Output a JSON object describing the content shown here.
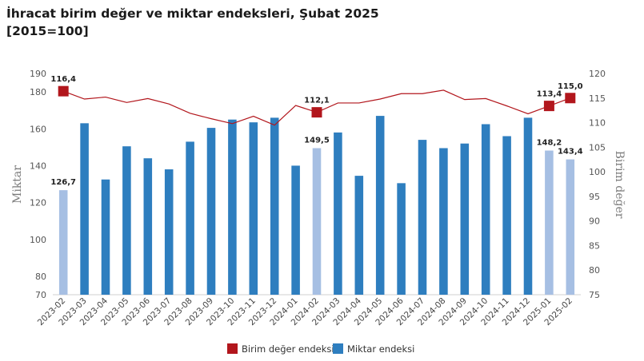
{
  "title": {
    "line1": "İhracat birim değer ve miktar endeksleri, Şubat 2025",
    "line2": "[2015=100]"
  },
  "chart_data": {
    "type": "bar",
    "categories": [
      "2023-02",
      "2023-03",
      "2023-04",
      "2023-05",
      "2023-06",
      "2023-07",
      "2023-08",
      "2023-09",
      "2023-10",
      "2023-11",
      "2023-12",
      "2024-01",
      "2024-02",
      "2024-03",
      "2024-04",
      "2024-05",
      "2024-06",
      "2024-07",
      "2024-08",
      "2024-09",
      "2024-10",
      "2024-11",
      "2024-12",
      "2025-01",
      "2025-02"
    ],
    "ylabel_left": "Miktar",
    "ylabel_right": "Birim değer",
    "ylim_left": [
      70,
      190
    ],
    "ylim_right": [
      75,
      120
    ],
    "yticks_left": [
      70,
      80,
      100,
      120,
      140,
      160,
      180,
      190
    ],
    "yticks_right": [
      75,
      80,
      85,
      90,
      95,
      100,
      105,
      110,
      115,
      120
    ],
    "legend_position": "bottom",
    "series": [
      {
        "name": "Miktar endeksi",
        "type": "bar",
        "axis": "left",
        "color": "#2e7ebf",
        "highlight_color": "#a6bfe3",
        "values": [
          126.7,
          163.0,
          132.5,
          150.5,
          144.0,
          138.0,
          153.0,
          160.5,
          165.0,
          163.5,
          166.0,
          140.0,
          149.5,
          158.0,
          134.5,
          167.0,
          130.5,
          154.0,
          149.5,
          152.0,
          162.5,
          156.0,
          166.0,
          148.2,
          143.4
        ],
        "highlighted": [
          true,
          false,
          false,
          false,
          false,
          false,
          false,
          false,
          false,
          false,
          false,
          false,
          true,
          false,
          false,
          false,
          false,
          false,
          false,
          false,
          false,
          false,
          false,
          true,
          true
        ],
        "labels": {
          "0": "126,7",
          "12": "149,5",
          "23": "148,2",
          "24": "143,4"
        }
      },
      {
        "name": "Birim değer endeksi",
        "type": "line",
        "axis": "right",
        "color": "#b2161c",
        "values": [
          116.4,
          114.8,
          115.2,
          114.1,
          114.9,
          113.8,
          111.9,
          110.8,
          109.8,
          111.3,
          109.5,
          113.5,
          112.1,
          114.0,
          114.0,
          114.8,
          115.9,
          115.9,
          116.6,
          114.7,
          114.9,
          113.4,
          111.8,
          113.4,
          115.0
        ],
        "markers": {
          "0": "116,4",
          "12": "112,1",
          "23": "113,4",
          "24": "115,0"
        }
      }
    ]
  },
  "legend": {
    "items": [
      {
        "label": "Birim değer endeksi",
        "color": "#b2161c"
      },
      {
        "label": "Miktar endeksi",
        "color": "#2e7ebf"
      }
    ]
  }
}
